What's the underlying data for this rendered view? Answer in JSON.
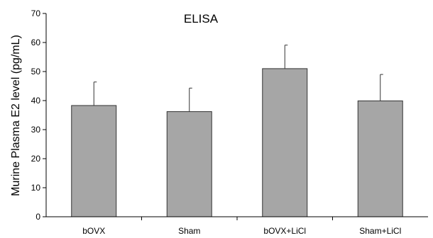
{
  "chart_data": {
    "type": "bar",
    "title": "ELISA",
    "xlabel": "",
    "ylabel": "Murine Plasma E2 level (pg/mL)",
    "categories": [
      "bOVX",
      "Sham",
      "bOVX+LiCl",
      "Sham+LiCl"
    ],
    "series": [
      {
        "values": [
          38.3,
          36.2,
          51.0,
          39.9
        ],
        "error_upper": [
          8.1,
          8.1,
          8.1,
          9.1
        ]
      }
    ],
    "ylim": [
      0,
      70
    ],
    "yticks": [
      0,
      10,
      20,
      30,
      40,
      50,
      60,
      70
    ],
    "grid": false,
    "legend": "none",
    "bar_color": "#a6a6a6",
    "bar_edge_color": "#333333",
    "axis_color": "#000000"
  }
}
